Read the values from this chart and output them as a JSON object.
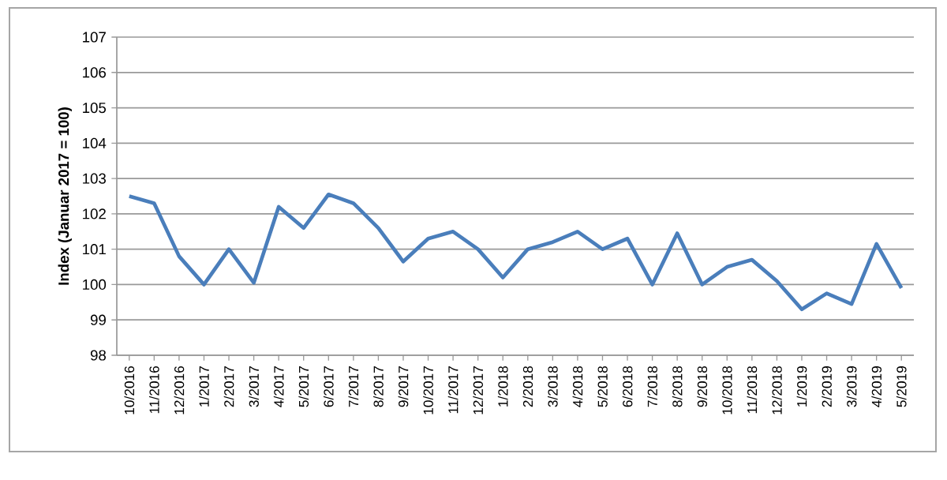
{
  "chart_data": {
    "type": "line",
    "ylabel": "Index (Januar 2017 = 100)",
    "categories": [
      "10/2016",
      "11/2016",
      "12/2016",
      "1/2017",
      "2/2017",
      "3/2017",
      "4/2017",
      "5/2017",
      "6/2017",
      "7/2017",
      "8/2017",
      "9/2017",
      "10/2017",
      "11/2017",
      "12/2017",
      "1/2018",
      "2/2018",
      "3/2018",
      "4/2018",
      "5/2018",
      "6/2018",
      "7/2018",
      "8/2018",
      "9/2018",
      "10/2018",
      "11/2018",
      "12/2018",
      "1/2019",
      "2/2019",
      "3/2019",
      "4/2019",
      "5/2019"
    ],
    "series": [
      {
        "color": "#4a7ebb",
        "values": [
          102.5,
          102.3,
          100.8,
          100.0,
          101.0,
          100.05,
          102.2,
          101.6,
          102.55,
          102.3,
          101.6,
          100.65,
          101.3,
          101.5,
          101.0,
          100.2,
          101.0,
          101.2,
          101.5,
          101.0,
          101.3,
          100.0,
          101.45,
          100.0,
          100.5,
          100.7,
          100.1,
          99.3,
          99.75,
          99.45,
          101.15,
          99.9
        ]
      }
    ],
    "ylim": [
      98,
      107
    ],
    "yticks": [
      98,
      99,
      100,
      101,
      102,
      103,
      104,
      105,
      106,
      107
    ],
    "grid": "y",
    "marker": "none",
    "line_style": "solid"
  }
}
